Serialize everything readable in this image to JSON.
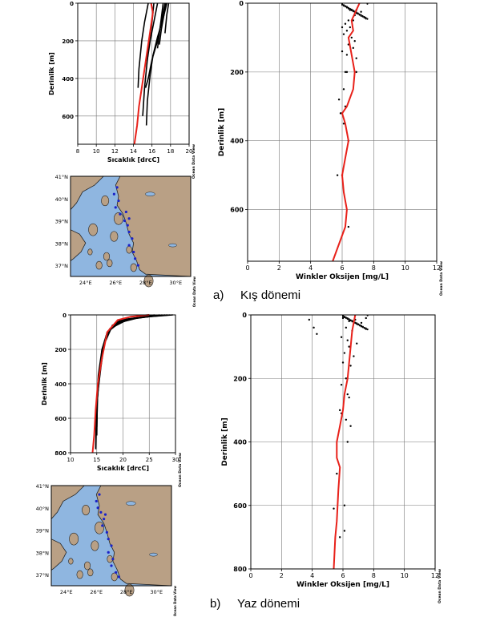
{
  "captions": {
    "winter_letter": "a)",
    "winter_text": "Kış dönemi",
    "summer_letter": "b)",
    "summer_text": "Yaz dönemi"
  },
  "watermark": "Ocean Data View",
  "colors": {
    "mean_profile": "#e8211a",
    "observations": "#000000",
    "stations": "#1a22c8",
    "sea": "#8fb6e0",
    "land": "#b9a085"
  },
  "chart_data": [
    {
      "id": "winter_temp",
      "type": "line",
      "xlabel": "Sıcaklık [drcC]",
      "ylabel": "Derinlik [m]",
      "xlim": [
        8,
        20
      ],
      "ylim": [
        0,
        750
      ],
      "xticks": [
        8,
        10,
        12,
        14,
        16,
        18,
        20
      ],
      "yticks": [
        0,
        200,
        400,
        600
      ],
      "grid": true,
      "observed_profiles": [
        {
          "x": [
            17.4,
            17.0,
            16.6,
            16.0,
            15.6,
            15.3
          ],
          "y": [
            0,
            100,
            200,
            300,
            400,
            450
          ]
        },
        {
          "x": [
            17.6,
            17.2,
            16.6,
            16.1,
            15.8,
            15.5,
            15.4
          ],
          "y": [
            0,
            80,
            180,
            280,
            380,
            520,
            650
          ]
        },
        {
          "x": [
            16.6,
            16.2,
            15.8,
            15.5,
            15.2,
            15.0
          ],
          "y": [
            0,
            100,
            200,
            300,
            450,
            600
          ]
        },
        {
          "x": [
            17.2,
            17.0,
            16.8,
            16.6
          ],
          "y": [
            0,
            80,
            160,
            240
          ]
        },
        {
          "x": [
            17.5,
            17.3,
            17.0,
            16.8
          ],
          "y": [
            0,
            60,
            140,
            220
          ]
        },
        {
          "x": [
            17.8,
            17.6,
            17.4
          ],
          "y": [
            0,
            60,
            160
          ]
        },
        {
          "x": [
            15.6,
            15.2,
            14.9,
            14.6,
            14.5
          ],
          "y": [
            0,
            100,
            200,
            350,
            450
          ]
        },
        {
          "x": [
            16.2,
            16.0,
            15.7,
            15.5
          ],
          "y": [
            0,
            100,
            200,
            300
          ]
        }
      ],
      "mean_profile": {
        "x": [
          15.9,
          16.1,
          15.8,
          15.5,
          15.2,
          14.9,
          14.6,
          14.4,
          14.1
        ],
        "y": [
          0,
          50,
          150,
          250,
          350,
          450,
          550,
          650,
          750
        ]
      }
    },
    {
      "id": "winter_oxygen",
      "type": "scatter",
      "xlabel": "Winkler Oksijen [mg/L]",
      "ylabel": "Derinlik [m]",
      "xlim": [
        0,
        12
      ],
      "ylim": [
        0,
        750
      ],
      "xticks": [
        0,
        2,
        4,
        6,
        8,
        10,
        12
      ],
      "yticks": [
        0,
        200,
        400,
        600
      ],
      "grid": true,
      "mean_profile": {
        "x": [
          7.1,
          6.9,
          6.6,
          6.7,
          6.4,
          6.6,
          6.8,
          6.7,
          6.3,
          6.0,
          6.2,
          6.4,
          6.2,
          6.0,
          6.1,
          6.3,
          6.2,
          5.4
        ],
        "y": [
          0,
          20,
          50,
          80,
          100,
          150,
          200,
          250,
          300,
          320,
          350,
          400,
          450,
          500,
          550,
          600,
          650,
          750
        ]
      },
      "points": {
        "x": [
          6.5,
          6.9,
          7.2,
          7.0,
          6.8,
          7.4,
          6.4,
          6.7,
          6.2,
          6.0,
          6.5,
          6.3,
          6.1,
          6.6,
          6.8,
          6.4,
          6.7,
          6.0,
          6.3,
          6.9,
          6.2,
          6.3,
          6.9,
          6.1,
          5.8,
          6.2,
          6.0,
          5.9,
          6.1,
          6.4,
          6.0,
          5.7,
          6.4
        ],
        "y": [
          20,
          20,
          25,
          30,
          35,
          40,
          50,
          50,
          60,
          70,
          70,
          80,
          90,
          100,
          110,
          120,
          130,
          140,
          150,
          160,
          200,
          200,
          200,
          250,
          280,
          300,
          320,
          320,
          350,
          400,
          500,
          500,
          650
        ]
      }
    },
    {
      "id": "summer_temp",
      "type": "line",
      "xlabel": "Sıcaklık [drcC]",
      "ylabel": "Derinlik [m]",
      "xlim": [
        10,
        30
      ],
      "ylim": [
        0,
        800
      ],
      "xticks": [
        10,
        15,
        20,
        25,
        30
      ],
      "yticks": [
        0,
        200,
        400,
        600,
        800
      ],
      "grid": true,
      "observed_profiles": [
        {
          "x": [
            28.0,
            22.0,
            18.0,
            16.5,
            15.8,
            15.2,
            14.9,
            14.8
          ],
          "y": [
            0,
            20,
            60,
            150,
            300,
            450,
            600,
            780
          ]
        },
        {
          "x": [
            27.0,
            21.0,
            17.5,
            16.0,
            15.5,
            15.1,
            15.0
          ],
          "y": [
            0,
            25,
            80,
            200,
            350,
            500,
            700
          ]
        },
        {
          "x": [
            29.0,
            23.0,
            19.0,
            17.0,
            16.0,
            15.3,
            15.0
          ],
          "y": [
            0,
            15,
            40,
            100,
            200,
            350,
            500
          ]
        },
        {
          "x": [
            26.0,
            20.0,
            17.0,
            15.8,
            15.2,
            15.0
          ],
          "y": [
            0,
            30,
            100,
            250,
            400,
            650
          ]
        },
        {
          "x": [
            28.5,
            24.0,
            19.5,
            17.5,
            16.5,
            15.6
          ],
          "y": [
            0,
            10,
            30,
            80,
            150,
            300
          ]
        },
        {
          "x": [
            27.5,
            22.5,
            18.5,
            16.8,
            15.9
          ],
          "y": [
            0,
            20,
            50,
            120,
            250
          ]
        },
        {
          "x": [
            29.5,
            25.0,
            20.5,
            18.0,
            16.7
          ],
          "y": [
            0,
            10,
            25,
            60,
            150
          ]
        }
      ],
      "mean_profile": {
        "x": [
          25.0,
          21.5,
          19.0,
          17.0,
          16.0,
          15.2,
          14.8,
          14.5,
          14.2
        ],
        "y": [
          0,
          10,
          30,
          100,
          250,
          400,
          550,
          700,
          800
        ]
      }
    },
    {
      "id": "summer_oxygen",
      "type": "scatter",
      "xlabel": "Winkler Oksijen [mg/L]",
      "ylabel": "Derinlik [m]",
      "xlim": [
        0,
        12
      ],
      "ylim": [
        0,
        800
      ],
      "xticks": [
        0,
        2,
        4,
        6,
        8,
        10,
        12
      ],
      "yticks": [
        0,
        200,
        400,
        600,
        800
      ],
      "grid": true,
      "mean_profile": {
        "x": [
          6.8,
          6.6,
          6.5,
          6.3,
          6.1,
          6.0,
          5.8,
          5.6,
          5.6,
          5.8,
          5.7,
          5.6,
          5.5,
          5.4
        ],
        "y": [
          0,
          50,
          100,
          200,
          250,
          300,
          350,
          400,
          450,
          480,
          550,
          650,
          700,
          800
        ]
      },
      "points": {
        "x": [
          3.8,
          4.1,
          4.3,
          6.0,
          6.4,
          6.8,
          7.2,
          7.5,
          6.2,
          6.6,
          7.0,
          5.9,
          6.3,
          6.9,
          6.4,
          6.1,
          6.7,
          6.0,
          6.5,
          6.2,
          5.9,
          6.3,
          6.4,
          5.8,
          5.9,
          6.5,
          6.2,
          5.6,
          6.3,
          5.4,
          6.1,
          5.8,
          6.1
        ],
        "y": [
          15,
          40,
          60,
          10,
          20,
          15,
          25,
          10,
          40,
          50,
          30,
          70,
          80,
          90,
          100,
          120,
          130,
          150,
          160,
          200,
          220,
          250,
          260,
          300,
          310,
          350,
          330,
          500,
          400,
          610,
          600,
          700,
          680
        ]
      }
    }
  ],
  "maps": [
    {
      "id": "winter_map",
      "lat_labels": [
        "41°N",
        "40°N",
        "39°N",
        "38°N",
        "37°N"
      ],
      "lon_labels": [
        "24°E",
        "26°E",
        "28°E",
        "30°E"
      ],
      "lat_range": [
        36.5,
        41
      ],
      "lon_range": [
        23,
        31
      ],
      "stations": [
        [
          26.1,
          40.5
        ],
        [
          25.9,
          40.2
        ],
        [
          26.2,
          39.9
        ],
        [
          26.0,
          39.6
        ],
        [
          26.3,
          39.3
        ],
        [
          26.6,
          39.0
        ],
        [
          26.8,
          38.8
        ],
        [
          26.9,
          38.5
        ],
        [
          27.1,
          38.2
        ],
        [
          26.9,
          37.9
        ],
        [
          27.2,
          37.6
        ],
        [
          27.3,
          37.3
        ],
        [
          27.5,
          37.0
        ],
        [
          26.7,
          39.4
        ],
        [
          26.9,
          39.1
        ]
      ]
    },
    {
      "id": "summer_map",
      "lat_labels": [
        "41°N",
        "40°N",
        "39°N",
        "38°N",
        "37°N"
      ],
      "lon_labels": [
        "24°E",
        "26°E",
        "28°E",
        "30°E"
      ],
      "lat_range": [
        36.5,
        41
      ],
      "lon_range": [
        23,
        31
      ],
      "stations": [
        [
          26.2,
          40.6
        ],
        [
          26.0,
          40.3
        ],
        [
          26.1,
          40.0
        ],
        [
          26.3,
          39.8
        ],
        [
          26.5,
          39.5
        ],
        [
          26.4,
          39.2
        ],
        [
          26.7,
          38.9
        ],
        [
          26.8,
          38.6
        ],
        [
          27.0,
          38.3
        ],
        [
          26.8,
          38.0
        ],
        [
          27.1,
          37.7
        ],
        [
          27.0,
          37.4
        ],
        [
          27.3,
          37.1
        ],
        [
          27.5,
          36.9
        ],
        [
          26.6,
          39.7
        ]
      ]
    }
  ]
}
